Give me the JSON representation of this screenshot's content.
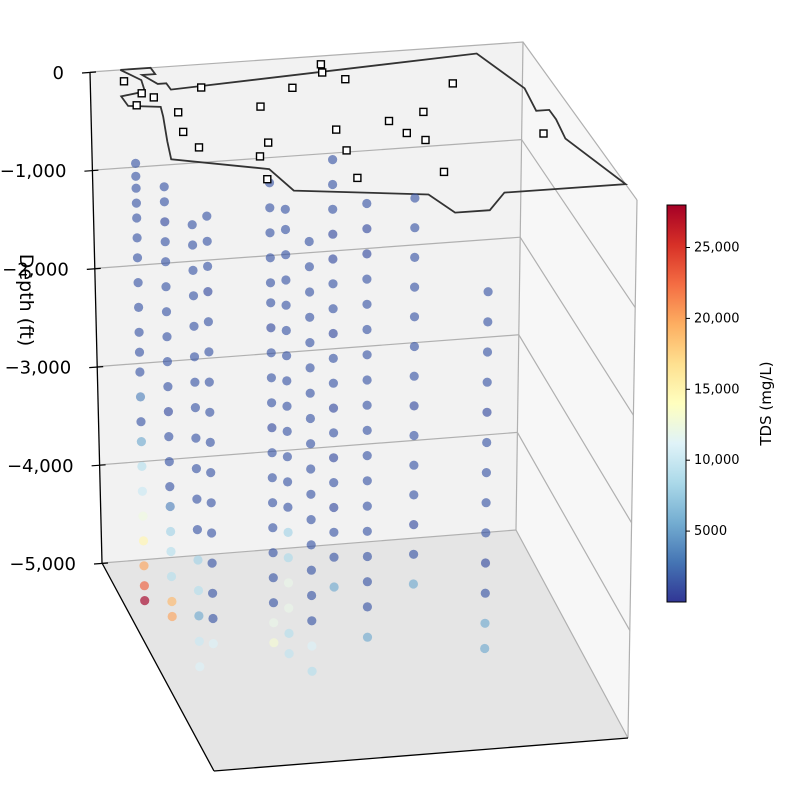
{
  "chart_data": {
    "type": "scatter3d",
    "zlabel": "Depth (ft)",
    "zlim": [
      -5000,
      0
    ],
    "z_ticks": [
      "0",
      "−1,000",
      "−2,000",
      "−3,000",
      "−4,000",
      "−5,000"
    ],
    "colorbar": {
      "label": "TDS (mg/L)",
      "range": [
        0,
        28000
      ],
      "ticks": [
        "5000",
        "10,000",
        "15,000",
        "20,000",
        "25,000"
      ],
      "colormap": "RdYlBu_r",
      "colors": [
        "#313695",
        "#4575b4",
        "#74add1",
        "#abd9e9",
        "#e0f3f8",
        "#ffffbf",
        "#fee090",
        "#fdae61",
        "#f46d43",
        "#d73027",
        "#a50026"
      ]
    },
    "marker_style": "hollow-square",
    "wells": [
      {
        "u": 0.07,
        "v": 0.88,
        "samples": [
          [
            -750,
            1500
          ],
          [
            -880,
            1500
          ],
          [
            -1000,
            1500
          ],
          [
            -1150,
            1500
          ],
          [
            -1300,
            1500
          ],
          [
            -1500,
            1500
          ],
          [
            -1700,
            1500
          ],
          [
            -1950,
            1500
          ],
          [
            -2200,
            1500
          ],
          [
            -2450,
            1500
          ],
          [
            -2650,
            1500
          ],
          [
            -2850,
            1500
          ],
          [
            -3100,
            3500
          ],
          [
            -3350,
            1500
          ],
          [
            -3550,
            5500
          ],
          [
            -3800,
            9000
          ],
          [
            -4050,
            10000
          ],
          [
            -4300,
            12500
          ],
          [
            -4550,
            15000
          ],
          [
            -4800,
            20000
          ],
          [
            -5000,
            23000
          ],
          [
            -5150,
            28000
          ]
        ]
      },
      {
        "u": 0.12,
        "v": 0.82,
        "samples": [
          [
            -900,
            1500
          ],
          [
            -1050,
            1500
          ],
          [
            -1250,
            1000
          ],
          [
            -1450,
            1500
          ],
          [
            -1650,
            1500
          ],
          [
            -1900,
            1500
          ],
          [
            -2150,
            1500
          ],
          [
            -2400,
            1500
          ],
          [
            -2650,
            1500
          ],
          [
            -2900,
            1500
          ],
          [
            -3150,
            1000
          ],
          [
            -3400,
            1500
          ],
          [
            -3650,
            1500
          ],
          [
            -3900,
            1500
          ],
          [
            -4100,
            3500
          ],
          [
            -4350,
            8000
          ],
          [
            -4550,
            9000
          ],
          [
            -4800,
            9000
          ],
          [
            -5050,
            19000
          ],
          [
            -5200,
            20000
          ]
        ]
      },
      {
        "u": 0.14,
        "v": 0.65,
        "samples": [
          [
            -1000,
            1500
          ],
          [
            -1200,
            1500
          ],
          [
            -1450,
            1500
          ],
          [
            -1700,
            1500
          ],
          [
            -2000,
            1500
          ],
          [
            -2300,
            1500
          ],
          [
            -2550,
            1500
          ],
          [
            -2800,
            1500
          ],
          [
            -3100,
            1500
          ],
          [
            -3400,
            1500
          ],
          [
            -3700,
            1500
          ],
          [
            -4000,
            1500
          ],
          [
            -4300,
            8000
          ],
          [
            -4600,
            9000
          ],
          [
            -4850,
            5500
          ],
          [
            -5100,
            10000
          ],
          [
            -5350,
            11000
          ]
        ]
      },
      {
        "u": 0.2,
        "v": 0.75,
        "samples": [
          [
            -1100,
            1500
          ],
          [
            -1350,
            1500
          ],
          [
            -1600,
            1500
          ],
          [
            -1850,
            1000
          ],
          [
            -2150,
            1500
          ],
          [
            -2450,
            1500
          ],
          [
            -2750,
            1500
          ],
          [
            -3050,
            1500
          ],
          [
            -3350,
            1500
          ],
          [
            -3650,
            1500
          ],
          [
            -3950,
            1500
          ],
          [
            -4250,
            1500
          ],
          [
            -4550,
            1500
          ],
          [
            -4850,
            1500
          ],
          [
            -5100,
            1500
          ],
          [
            -5350,
            11000
          ]
        ]
      },
      {
        "u": 0.36,
        "v": 0.8,
        "samples": [
          [
            -900,
            1500
          ],
          [
            -1150,
            1500
          ],
          [
            -1400,
            1500
          ],
          [
            -1650,
            1500
          ],
          [
            -1900,
            1500
          ],
          [
            -2100,
            1500
          ],
          [
            -2350,
            1000
          ],
          [
            -2600,
            1500
          ],
          [
            -2850,
            1500
          ],
          [
            -3100,
            1500
          ],
          [
            -3350,
            1000
          ],
          [
            -3600,
            1500
          ],
          [
            -3850,
            1500
          ],
          [
            -4100,
            1500
          ],
          [
            -4350,
            1500
          ],
          [
            -4600,
            1500
          ],
          [
            -4850,
            1500
          ],
          [
            -5100,
            1500
          ],
          [
            -5300,
            12000
          ],
          [
            -5500,
            13000
          ]
        ]
      },
      {
        "u": 0.37,
        "v": 0.7,
        "samples": [
          [
            -1000,
            1500
          ],
          [
            -1200,
            1500
          ],
          [
            -1450,
            1500
          ],
          [
            -1700,
            1500
          ],
          [
            -1950,
            1500
          ],
          [
            -2200,
            1500
          ],
          [
            -2450,
            1500
          ],
          [
            -2700,
            1500
          ],
          [
            -2950,
            1500
          ],
          [
            -3200,
            1500
          ],
          [
            -3450,
            1500
          ],
          [
            -3700,
            1500
          ],
          [
            -3950,
            1500
          ],
          [
            -4200,
            8000
          ],
          [
            -4450,
            8500
          ],
          [
            -4700,
            12000
          ],
          [
            -4950,
            12000
          ],
          [
            -5200,
            9000
          ],
          [
            -5400,
            9500
          ]
        ]
      },
      {
        "u": 0.42,
        "v": 0.68,
        "samples": [
          [
            -1300,
            1500
          ],
          [
            -1550,
            1500
          ],
          [
            -1800,
            1500
          ],
          [
            -2050,
            1500
          ],
          [
            -2300,
            1500
          ],
          [
            -2550,
            1500
          ],
          [
            -2800,
            1500
          ],
          [
            -3050,
            1500
          ],
          [
            -3300,
            1500
          ],
          [
            -3550,
            1500
          ],
          [
            -3800,
            1500
          ],
          [
            -4050,
            1500
          ],
          [
            -4300,
            1500
          ],
          [
            -4550,
            1500
          ],
          [
            -4800,
            1500
          ],
          [
            -5050,
            1500
          ],
          [
            -5300,
            11000
          ],
          [
            -5550,
            9000
          ]
        ]
      },
      {
        "u": 0.52,
        "v": 0.85,
        "samples": [
          [
            -800,
            1500
          ],
          [
            -1050,
            1500
          ],
          [
            -1300,
            1500
          ],
          [
            -1550,
            1000
          ],
          [
            -1800,
            1000
          ],
          [
            -2050,
            1500
          ],
          [
            -2300,
            1500
          ],
          [
            -2550,
            1000
          ],
          [
            -2800,
            1500
          ],
          [
            -3050,
            1500
          ],
          [
            -3300,
            1000
          ],
          [
            -3550,
            1500
          ],
          [
            -3800,
            1000
          ],
          [
            -4050,
            1500
          ],
          [
            -4300,
            1000
          ],
          [
            -4550,
            1500
          ],
          [
            -4800,
            1500
          ],
          [
            -5100,
            5500
          ]
        ]
      },
      {
        "u": 0.56,
        "v": 0.7,
        "samples": [
          [
            -1000,
            1500
          ],
          [
            -1250,
            1000
          ],
          [
            -1500,
            1000
          ],
          [
            -1750,
            1500
          ],
          [
            -2000,
            1500
          ],
          [
            -2250,
            1500
          ],
          [
            -2500,
            1500
          ],
          [
            -2750,
            1500
          ],
          [
            -3000,
            1500
          ],
          [
            -3250,
            1500
          ],
          [
            -3500,
            1500
          ],
          [
            -3750,
            1500
          ],
          [
            -4000,
            1500
          ],
          [
            -4250,
            1500
          ],
          [
            -4500,
            1500
          ],
          [
            -4750,
            1500
          ],
          [
            -5000,
            1500
          ],
          [
            -5300,
            5500
          ]
        ]
      },
      {
        "u": 0.72,
        "v": 0.88,
        "samples": [
          [
            -1300,
            1500
          ],
          [
            -1600,
            1500
          ],
          [
            -1900,
            1500
          ],
          [
            -2200,
            1500
          ],
          [
            -2500,
            1500
          ],
          [
            -2800,
            1500
          ],
          [
            -3100,
            1500
          ],
          [
            -3400,
            1000
          ],
          [
            -3700,
            1500
          ],
          [
            -4000,
            1500
          ],
          [
            -4300,
            1500
          ],
          [
            -4600,
            1000
          ],
          [
            -4900,
            1500
          ],
          [
            -5200,
            5500
          ]
        ]
      },
      {
        "u": 0.85,
        "v": 0.72,
        "samples": [
          [
            -2000,
            1500
          ],
          [
            -2300,
            1500
          ],
          [
            -2600,
            1500
          ],
          [
            -2900,
            1500
          ],
          [
            -3200,
            1000
          ],
          [
            -3500,
            1500
          ],
          [
            -3800,
            1500
          ],
          [
            -4100,
            1500
          ],
          [
            -4400,
            1500
          ],
          [
            -4700,
            1000
          ],
          [
            -5000,
            1500
          ],
          [
            -5300,
            5500
          ],
          [
            -5550,
            5500
          ]
        ]
      }
    ],
    "wellheads": [
      {
        "u": 0.06,
        "v": 0.93
      },
      {
        "u": 0.05,
        "v": 0.78
      },
      {
        "u": 0.08,
        "v": 0.85
      },
      {
        "u": 0.1,
        "v": 0.82
      },
      {
        "u": 0.13,
        "v": 0.72
      },
      {
        "u": 0.11,
        "v": 0.6
      },
      {
        "u": 0.12,
        "v": 0.5
      },
      {
        "u": 0.22,
        "v": 0.86
      },
      {
        "u": 0.24,
        "v": 0.42
      },
      {
        "u": 0.22,
        "v": 0.28
      },
      {
        "u": 0.32,
        "v": 0.72
      },
      {
        "u": 0.28,
        "v": 0.5
      },
      {
        "u": 0.42,
        "v": 0.82
      },
      {
        "u": 0.45,
        "v": 0.55
      },
      {
        "u": 0.44,
        "v": 0.42
      },
      {
        "u": 0.42,
        "v": 0.25
      },
      {
        "u": 0.52,
        "v": 0.95
      },
      {
        "u": 0.51,
        "v": 0.9
      },
      {
        "u": 0.55,
        "v": 0.85
      },
      {
        "u": 0.58,
        "v": 0.58
      },
      {
        "u": 0.6,
        "v": 0.5
      },
      {
        "u": 0.63,
        "v": 0.45
      },
      {
        "u": 0.62,
        "v": 0.25
      },
      {
        "u": 0.67,
        "v": 0.62
      },
      {
        "u": 0.78,
        "v": 0.78
      },
      {
        "u": 0.9,
        "v": 0.44
      }
    ],
    "boundary": [
      [
        0.07,
        1.0
      ],
      [
        0.14,
        1.0
      ],
      [
        0.14,
        0.96
      ],
      [
        0.11,
        0.96
      ],
      [
        0.13,
        0.9
      ],
      [
        0.15,
        0.9
      ],
      [
        0.15,
        0.86
      ],
      [
        0.88,
        0.95
      ],
      [
        0.93,
        0.72
      ],
      [
        0.92,
        0.58
      ],
      [
        0.95,
        0.58
      ],
      [
        0.95,
        0.52
      ],
      [
        0.94,
        0.4
      ],
      [
        1.0,
        0.1
      ],
      [
        0.72,
        0.1
      ],
      [
        0.66,
        0.0
      ],
      [
        0.58,
        0.0
      ],
      [
        0.55,
        0.12
      ],
      [
        0.26,
        0.2
      ],
      [
        0.24,
        0.34
      ],
      [
        0.04,
        0.44
      ],
      [
        0.06,
        0.55
      ],
      [
        0.09,
        0.7
      ],
      [
        0.1,
        0.76
      ],
      [
        0.03,
        0.78
      ],
      [
        0.03,
        0.84
      ],
      [
        0.09,
        0.86
      ],
      [
        0.1,
        0.93
      ],
      [
        0.07,
        1.0
      ]
    ]
  }
}
